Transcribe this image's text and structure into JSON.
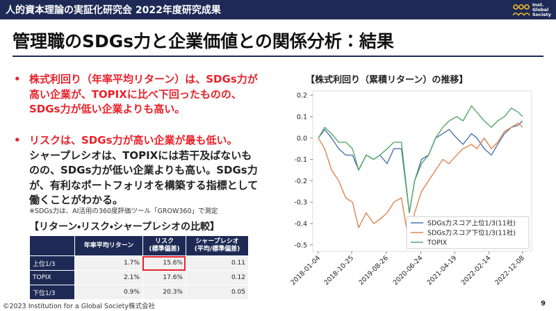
{
  "header": {
    "title": "人的資本理論の実証化研究会 2022年度研究成果",
    "logo": [
      "Inst.",
      "Global",
      "Society"
    ]
  },
  "title": "管理職のSDGs力と企業価値との関係分析：結果",
  "bullets": [
    {
      "highlight": "株式利回り（年率平均リターン）は、SDGs力が高い企業が、TOPIXに比べ下回ったものの、SDGs力が低い企業よりも高い。"
    },
    {
      "highlight": "リスクは、SDGs力が高い企業が最も低い。",
      "text": "シャープレシオは、TOPIXには若干及ばないものの、SDGs力が低い企業よりも高い。SDGs力が、有利なポートフォリオを構築する指標として働くことがわかる。"
    }
  ],
  "note": "※SDGs力は、AI活用の360度評価ツール「GROW360」で測定",
  "table": {
    "title": "【リターン・リスク・シャープレシオの比較】",
    "header": [
      [
        "年率平均リターン"
      ],
      [
        "リスク",
        "(標準偏差)"
      ],
      [
        "シャープレシオ",
        "(平均/標準偏差)"
      ]
    ],
    "rows": [
      [
        "上位1/3",
        "1.7%",
        "15.6%",
        "0.11"
      ],
      [
        "TOPIX",
        "2.1%",
        "17.6%",
        "0.12"
      ],
      [
        "下位1/3",
        "0.9%",
        "20.3%",
        "0.05"
      ]
    ]
  },
  "chart_data": {
    "type": "line",
    "title": "【株式利回り（累積リターン）の推移】",
    "x": [
      "2018-01-04",
      "2018-03-01",
      "2018-05-01",
      "2018-07-02",
      "2018-09-03",
      "2018-11-01",
      "2018-12-25",
      "2019-03-01",
      "2019-05-07",
      "2019-07-01",
      "2019-09-02",
      "2019-11-01",
      "2020-01-06",
      "2020-03-16",
      "2020-05-01",
      "2020-07-01",
      "2020-09-01",
      "2020-11-02",
      "2021-01-04",
      "2021-03-01",
      "2021-05-06",
      "2021-07-01",
      "2021-09-14",
      "2021-11-01",
      "2022-01-04",
      "2022-03-08",
      "2022-05-02",
      "2022-07-01",
      "2022-09-01",
      "2022-11-01",
      "2022-12-08"
    ],
    "series": [
      {
        "name": "SDGs力スコア上位1/3(11社)",
        "color": "#4c72b0",
        "values": [
          0.0,
          0.04,
          0.0,
          -0.05,
          -0.08,
          -0.08,
          -0.15,
          -0.08,
          -0.1,
          -0.08,
          -0.12,
          -0.05,
          -0.05,
          -0.35,
          -0.2,
          -0.1,
          -0.08,
          0.0,
          0.02,
          0.04,
          0.0,
          -0.03,
          0.02,
          0.0,
          -0.05,
          -0.08,
          -0.03,
          0.02,
          0.05,
          0.06,
          0.08
        ]
      },
      {
        "name": "SDGs力スコア下位1/3(11社)",
        "color": "#dd8452",
        "values": [
          0.0,
          -0.05,
          -0.15,
          -0.2,
          -0.28,
          -0.3,
          -0.42,
          -0.35,
          -0.4,
          -0.38,
          -0.35,
          -0.3,
          -0.28,
          -0.5,
          -0.35,
          -0.25,
          -0.2,
          -0.15,
          -0.1,
          -0.12,
          -0.08,
          -0.05,
          -0.03,
          -0.05,
          0.0,
          -0.05,
          -0.02,
          0.03,
          0.05,
          0.07,
          0.05
        ]
      },
      {
        "name": "TOPIX",
        "color": "#55a868",
        "values": [
          0.0,
          0.05,
          0.02,
          -0.02,
          -0.02,
          -0.05,
          -0.15,
          -0.08,
          -0.1,
          -0.08,
          -0.05,
          -0.02,
          -0.02,
          -0.35,
          -0.2,
          -0.12,
          -0.08,
          0.0,
          0.05,
          0.08,
          0.1,
          0.08,
          0.15,
          0.12,
          0.08,
          0.05,
          0.08,
          0.1,
          0.14,
          0.12,
          0.1
        ]
      }
    ],
    "xlim": [
      "2017-11-16",
      "2023-02-26"
    ],
    "xticks": [
      "2018-01-04",
      "2018-10-25",
      "2019-08-26",
      "2020-06-24",
      "2021-04-19",
      "2022-02-14",
      "2022-12-08"
    ],
    "ylim": [
      -0.53,
      0.22
    ],
    "yticks": [
      0.2,
      0.1,
      {
        "value": 0,
        "label": "0.0"
      },
      -0.1,
      -0.2,
      -0.3,
      -0.4,
      -0.5
    ],
    "legend": "lower right"
  },
  "footer": "©2023 Institution for a Global Society株式会社",
  "page_number": "9"
}
